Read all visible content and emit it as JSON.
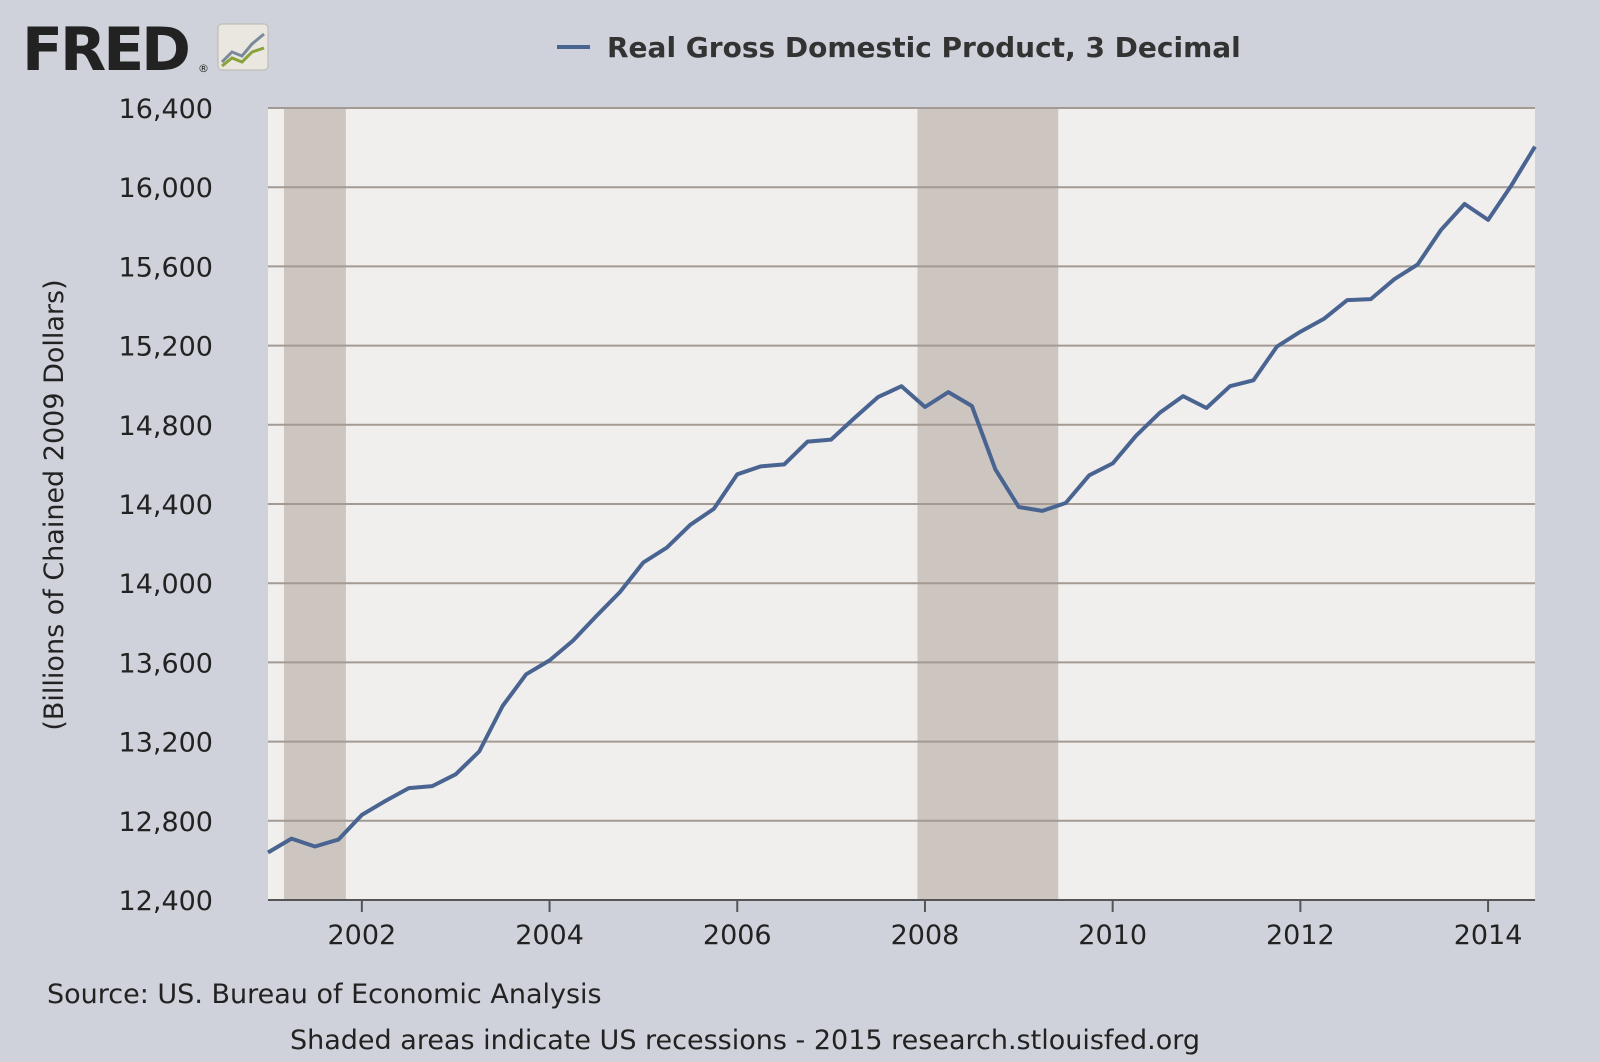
{
  "logo": {
    "text": "FRED",
    "reg": "®"
  },
  "chart_data": {
    "type": "line",
    "title": "Real Gross Domestic Product, 3 Decimal",
    "ylabel": "(Billions of Chained 2009 Dollars)",
    "xlabel": "",
    "xlim": [
      2001.0,
      2014.5
    ],
    "ylim": [
      12400,
      16400
    ],
    "yticks": [
      12400,
      12800,
      13200,
      13600,
      14000,
      14400,
      14800,
      15200,
      15600,
      16000,
      16400
    ],
    "ytick_labels": [
      "12,400",
      "12,800",
      "13,200",
      "13,600",
      "14,000",
      "14,400",
      "14,800",
      "15,200",
      "15,600",
      "16,000",
      "16,400"
    ],
    "xticks": [
      2002,
      2004,
      2006,
      2008,
      2010,
      2012,
      2014
    ],
    "xtick_labels": [
      "2002",
      "2004",
      "2006",
      "2008",
      "2010",
      "2012",
      "2014"
    ],
    "grid": true,
    "legend_position": "top-center",
    "colors": {
      "line": "#4a6491",
      "recession": "#ccc5c0",
      "plot_bg": "#f1efed",
      "grid": "#a39a93",
      "background": "#cfd2da"
    },
    "recessions": [
      {
        "start": 2001.17,
        "end": 2001.83
      },
      {
        "start": 2007.92,
        "end": 2009.42
      }
    ],
    "series": [
      {
        "name": "Real Gross Domestic Product, 3 Decimal",
        "x": [
          2001.0,
          2001.25,
          2001.5,
          2001.75,
          2002.0,
          2002.25,
          2002.5,
          2002.75,
          2003.0,
          2003.25,
          2003.5,
          2003.75,
          2004.0,
          2004.25,
          2004.5,
          2004.75,
          2005.0,
          2005.25,
          2005.5,
          2005.75,
          2006.0,
          2006.25,
          2006.5,
          2006.75,
          2007.0,
          2007.25,
          2007.5,
          2007.75,
          2008.0,
          2008.25,
          2008.5,
          2008.75,
          2009.0,
          2009.25,
          2009.5,
          2009.75,
          2010.0,
          2010.25,
          2010.5,
          2010.75,
          2011.0,
          2011.25,
          2011.5,
          2011.75,
          2012.0,
          2012.25,
          2012.5,
          2012.75,
          2013.0,
          2013.25,
          2013.5,
          2013.75,
          2014.0,
          2014.25,
          2014.5
        ],
        "values": [
          12640,
          12710,
          12670,
          12705,
          12830,
          12900,
          12965,
          12975,
          13035,
          13150,
          13380,
          13540,
          13610,
          13710,
          13835,
          13955,
          14105,
          14180,
          14295,
          14375,
          14550,
          14590,
          14600,
          14715,
          14725,
          14835,
          14940,
          14995,
          14890,
          14965,
          14895,
          14575,
          14385,
          14365,
          14405,
          14545,
          14605,
          14745,
          14860,
          14945,
          14885,
          14995,
          15025,
          15195,
          15270,
          15335,
          15430,
          15435,
          15535,
          15610,
          15785,
          15915,
          15835,
          16010,
          16205
        ]
      }
    ]
  },
  "footer": {
    "source": "Source: US. Bureau of Economic Analysis",
    "note": "Shaded areas indicate US recessions - 2015 research.stlouisfed.org"
  }
}
